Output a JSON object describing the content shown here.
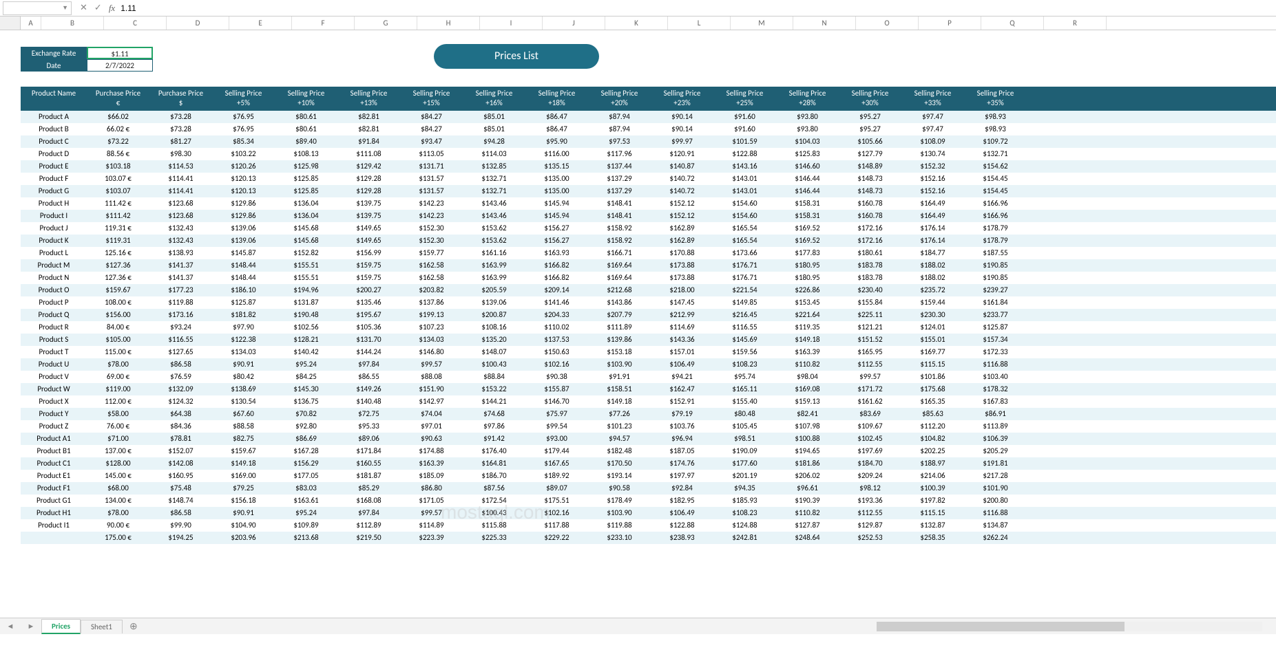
{
  "formula_bar": {
    "name_box": "",
    "value": "1.11"
  },
  "columns": [
    "A",
    "B",
    "C",
    "D",
    "E",
    "F",
    "G",
    "H",
    "I",
    "J",
    "K",
    "L",
    "M",
    "N",
    "O",
    "P",
    "Q",
    "R"
  ],
  "info": {
    "exchange_label": "Exchange Rate",
    "exchange_value": "$1.11",
    "date_label": "Date",
    "date_value": "2/7/2022"
  },
  "title": "Prices List",
  "headers": [
    {
      "l1": "Product Name",
      "l2": ""
    },
    {
      "l1": "Purchase Price",
      "l2": "€"
    },
    {
      "l1": "Purchase Price",
      "l2": "$"
    },
    {
      "l1": "Selling Price",
      "l2": "+5%"
    },
    {
      "l1": "Selling Price",
      "l2": "+10%"
    },
    {
      "l1": "Selling Price",
      "l2": "+13%"
    },
    {
      "l1": "Selling Price",
      "l2": "+15%"
    },
    {
      "l1": "Selling Price",
      "l2": "+16%"
    },
    {
      "l1": "Selling Price",
      "l2": "+18%"
    },
    {
      "l1": "Selling Price",
      "l2": "+20%"
    },
    {
      "l1": "Selling Price",
      "l2": "+23%"
    },
    {
      "l1": "Selling Price",
      "l2": "+25%"
    },
    {
      "l1": "Selling Price",
      "l2": "+28%"
    },
    {
      "l1": "Selling Price",
      "l2": "+30%"
    },
    {
      "l1": "Selling Price",
      "l2": "+33%"
    },
    {
      "l1": "Selling Price",
      "l2": "+35%"
    }
  ],
  "rows": [
    [
      "Product A",
      "$66.02",
      "$73.28",
      "$76.95",
      "$80.61",
      "$82.81",
      "$84.27",
      "$85.01",
      "$86.47",
      "$87.94",
      "$90.14",
      "$91.60",
      "$93.80",
      "$95.27",
      "$97.47",
      "$98.93"
    ],
    [
      "Product B",
      "66.02 €",
      "$73.28",
      "$76.95",
      "$80.61",
      "$82.81",
      "$84.27",
      "$85.01",
      "$86.47",
      "$87.94",
      "$90.14",
      "$91.60",
      "$93.80",
      "$95.27",
      "$97.47",
      "$98.93"
    ],
    [
      "Product C",
      "$73.22",
      "$81.27",
      "$85.34",
      "$89.40",
      "$91.84",
      "$93.47",
      "$94.28",
      "$95.90",
      "$97.53",
      "$99.97",
      "$101.59",
      "$104.03",
      "$105.66",
      "$108.09",
      "$109.72"
    ],
    [
      "Product D",
      "88.56 €",
      "$98.30",
      "$103.22",
      "$108.13",
      "$111.08",
      "$113.05",
      "$114.03",
      "$116.00",
      "$117.96",
      "$120.91",
      "$122.88",
      "$125.83",
      "$127.79",
      "$130.74",
      "$132.71"
    ],
    [
      "Product E",
      "$103.18",
      "$114.53",
      "$120.26",
      "$125.98",
      "$129.42",
      "$131.71",
      "$132.85",
      "$135.15",
      "$137.44",
      "$140.87",
      "$143.16",
      "$146.60",
      "$148.89",
      "$152.32",
      "$154.62"
    ],
    [
      "Product F",
      "103.07 €",
      "$114.41",
      "$120.13",
      "$125.85",
      "$129.28",
      "$131.57",
      "$132.71",
      "$135.00",
      "$137.29",
      "$140.72",
      "$143.01",
      "$146.44",
      "$148.73",
      "$152.16",
      "$154.45"
    ],
    [
      "Product G",
      "$103.07",
      "$114.41",
      "$120.13",
      "$125.85",
      "$129.28",
      "$131.57",
      "$132.71",
      "$135.00",
      "$137.29",
      "$140.72",
      "$143.01",
      "$146.44",
      "$148.73",
      "$152.16",
      "$154.45"
    ],
    [
      "Product H",
      "111.42 €",
      "$123.68",
      "$129.86",
      "$136.04",
      "$139.75",
      "$142.23",
      "$143.46",
      "$145.94",
      "$148.41",
      "$152.12",
      "$154.60",
      "$158.31",
      "$160.78",
      "$164.49",
      "$166.96"
    ],
    [
      "Product I",
      "$111.42",
      "$123.68",
      "$129.86",
      "$136.04",
      "$139.75",
      "$142.23",
      "$143.46",
      "$145.94",
      "$148.41",
      "$152.12",
      "$154.60",
      "$158.31",
      "$160.78",
      "$164.49",
      "$166.96"
    ],
    [
      "Product J",
      "119.31 €",
      "$132.43",
      "$139.06",
      "$145.68",
      "$149.65",
      "$152.30",
      "$153.62",
      "$156.27",
      "$158.92",
      "$162.89",
      "$165.54",
      "$169.52",
      "$172.16",
      "$176.14",
      "$178.79"
    ],
    [
      "Product K",
      "$119.31",
      "$132.43",
      "$139.06",
      "$145.68",
      "$149.65",
      "$152.30",
      "$153.62",
      "$156.27",
      "$158.92",
      "$162.89",
      "$165.54",
      "$169.52",
      "$172.16",
      "$176.14",
      "$178.79"
    ],
    [
      "Product L",
      "125.16 €",
      "$138.93",
      "$145.87",
      "$152.82",
      "$156.99",
      "$159.77",
      "$161.16",
      "$163.93",
      "$166.71",
      "$170.88",
      "$173.66",
      "$177.83",
      "$180.61",
      "$184.77",
      "$187.55"
    ],
    [
      "Product M",
      "$127.36",
      "$141.37",
      "$148.44",
      "$155.51",
      "$159.75",
      "$162.58",
      "$163.99",
      "$166.82",
      "$169.64",
      "$173.88",
      "$176.71",
      "$180.95",
      "$183.78",
      "$188.02",
      "$190.85"
    ],
    [
      "Product N",
      "127.36 €",
      "$141.37",
      "$148.44",
      "$155.51",
      "$159.75",
      "$162.58",
      "$163.99",
      "$166.82",
      "$169.64",
      "$173.88",
      "$176.71",
      "$180.95",
      "$183.78",
      "$188.02",
      "$190.85"
    ],
    [
      "Product O",
      "$159.67",
      "$177.23",
      "$186.10",
      "$194.96",
      "$200.27",
      "$203.82",
      "$205.59",
      "$209.14",
      "$212.68",
      "$218.00",
      "$221.54",
      "$226.86",
      "$230.40",
      "$235.72",
      "$239.27"
    ],
    [
      "Product P",
      "108.00 €",
      "$119.88",
      "$125.87",
      "$131.87",
      "$135.46",
      "$137.86",
      "$139.06",
      "$141.46",
      "$143.86",
      "$147.45",
      "$149.85",
      "$153.45",
      "$155.84",
      "$159.44",
      "$161.84"
    ],
    [
      "Product Q",
      "$156.00",
      "$173.16",
      "$181.82",
      "$190.48",
      "$195.67",
      "$199.13",
      "$200.87",
      "$204.33",
      "$207.79",
      "$212.99",
      "$216.45",
      "$221.64",
      "$225.11",
      "$230.30",
      "$233.77"
    ],
    [
      "Product R",
      "84.00 €",
      "$93.24",
      "$97.90",
      "$102.56",
      "$105.36",
      "$107.23",
      "$108.16",
      "$110.02",
      "$111.89",
      "$114.69",
      "$116.55",
      "$119.35",
      "$121.21",
      "$124.01",
      "$125.87"
    ],
    [
      "Product S",
      "$105.00",
      "$116.55",
      "$122.38",
      "$128.21",
      "$131.70",
      "$134.03",
      "$135.20",
      "$137.53",
      "$139.86",
      "$143.36",
      "$145.69",
      "$149.18",
      "$151.52",
      "$155.01",
      "$157.34"
    ],
    [
      "Product T",
      "115.00 €",
      "$127.65",
      "$134.03",
      "$140.42",
      "$144.24",
      "$146.80",
      "$148.07",
      "$150.63",
      "$153.18",
      "$157.01",
      "$159.56",
      "$163.39",
      "$165.95",
      "$169.77",
      "$172.33"
    ],
    [
      "Product U",
      "$78.00",
      "$86.58",
      "$90.91",
      "$95.24",
      "$97.84",
      "$99.57",
      "$100.43",
      "$102.16",
      "$103.90",
      "$106.49",
      "$108.23",
      "$110.82",
      "$112.55",
      "$115.15",
      "$116.88"
    ],
    [
      "Product V",
      "69.00 €",
      "$76.59",
      "$80.42",
      "$84.25",
      "$86.55",
      "$88.08",
      "$88.84",
      "$90.38",
      "$91.91",
      "$94.21",
      "$95.74",
      "$98.04",
      "$99.57",
      "$101.86",
      "$103.40"
    ],
    [
      "Product W",
      "$119.00",
      "$132.09",
      "$138.69",
      "$145.30",
      "$149.26",
      "$151.90",
      "$153.22",
      "$155.87",
      "$158.51",
      "$162.47",
      "$165.11",
      "$169.08",
      "$171.72",
      "$175.68",
      "$178.32"
    ],
    [
      "Product X",
      "112.00 €",
      "$124.32",
      "$130.54",
      "$136.75",
      "$140.48",
      "$142.97",
      "$144.21",
      "$146.70",
      "$149.18",
      "$152.91",
      "$155.40",
      "$159.13",
      "$161.62",
      "$165.35",
      "$167.83"
    ],
    [
      "Product Y",
      "$58.00",
      "$64.38",
      "$67.60",
      "$70.82",
      "$72.75",
      "$74.04",
      "$74.68",
      "$75.97",
      "$77.26",
      "$79.19",
      "$80.48",
      "$82.41",
      "$83.69",
      "$85.63",
      "$86.91"
    ],
    [
      "Product Z",
      "76.00 €",
      "$84.36",
      "$88.58",
      "$92.80",
      "$95.33",
      "$97.01",
      "$97.86",
      "$99.54",
      "$101.23",
      "$103.76",
      "$105.45",
      "$107.98",
      "$109.67",
      "$112.20",
      "$113.89"
    ],
    [
      "Product A1",
      "$71.00",
      "$78.81",
      "$82.75",
      "$86.69",
      "$89.06",
      "$90.63",
      "$91.42",
      "$93.00",
      "$94.57",
      "$96.94",
      "$98.51",
      "$100.88",
      "$102.45",
      "$104.82",
      "$106.39"
    ],
    [
      "Product B1",
      "137.00 €",
      "$152.07",
      "$159.67",
      "$167.28",
      "$171.84",
      "$174.88",
      "$176.40",
      "$179.44",
      "$182.48",
      "$187.05",
      "$190.09",
      "$194.65",
      "$197.69",
      "$202.25",
      "$205.29"
    ],
    [
      "Product C1",
      "$128.00",
      "$142.08",
      "$149.18",
      "$156.29",
      "$160.55",
      "$163.39",
      "$164.81",
      "$167.65",
      "$170.50",
      "$174.76",
      "$177.60",
      "$181.86",
      "$184.70",
      "$188.97",
      "$191.81"
    ],
    [
      "Product E1",
      "145.00 €",
      "$160.95",
      "$169.00",
      "$177.05",
      "$181.87",
      "$185.09",
      "$186.70",
      "$189.92",
      "$193.14",
      "$197.97",
      "$201.19",
      "$206.02",
      "$209.24",
      "$214.06",
      "$217.28"
    ],
    [
      "Product F1",
      "$68.00",
      "$75.48",
      "$79.25",
      "$83.03",
      "$85.29",
      "$86.80",
      "$87.56",
      "$89.07",
      "$90.58",
      "$92.84",
      "$94.35",
      "$96.61",
      "$98.12",
      "$100.39",
      "$101.90"
    ],
    [
      "Product G1",
      "134.00 €",
      "$148.74",
      "$156.18",
      "$163.61",
      "$168.08",
      "$171.05",
      "$172.54",
      "$175.51",
      "$178.49",
      "$182.95",
      "$185.93",
      "$190.39",
      "$193.36",
      "$197.82",
      "$200.80"
    ],
    [
      "Product H1",
      "$78.00",
      "$86.58",
      "$90.91",
      "$95.24",
      "$97.84",
      "$99.57",
      "$100.43",
      "$102.16",
      "$103.90",
      "$106.49",
      "$108.23",
      "$110.82",
      "$112.55",
      "$115.15",
      "$116.88"
    ],
    [
      "Product I1",
      "90.00 €",
      "$99.90",
      "$104.90",
      "$109.89",
      "$112.89",
      "$114.89",
      "$115.88",
      "$117.88",
      "$119.88",
      "$122.88",
      "$124.88",
      "$127.87",
      "$129.87",
      "$132.87",
      "$134.87"
    ],
    [
      "",
      "175.00 €",
      "$194.25",
      "$203.96",
      "$213.68",
      "$219.50",
      "$223.39",
      "$225.33",
      "$229.22",
      "$233.10",
      "$238.93",
      "$242.81",
      "$248.64",
      "$252.53",
      "$258.35",
      "$262.24"
    ]
  ],
  "tabs": {
    "active": "Prices",
    "other": "Sheet1"
  },
  "watermark": "mostaql.com",
  "colors": {
    "header_bg": "#1f5f74",
    "row_even": "#e8f4f8",
    "title_bg": "#1f6f87",
    "sel_border": "#21a366"
  }
}
